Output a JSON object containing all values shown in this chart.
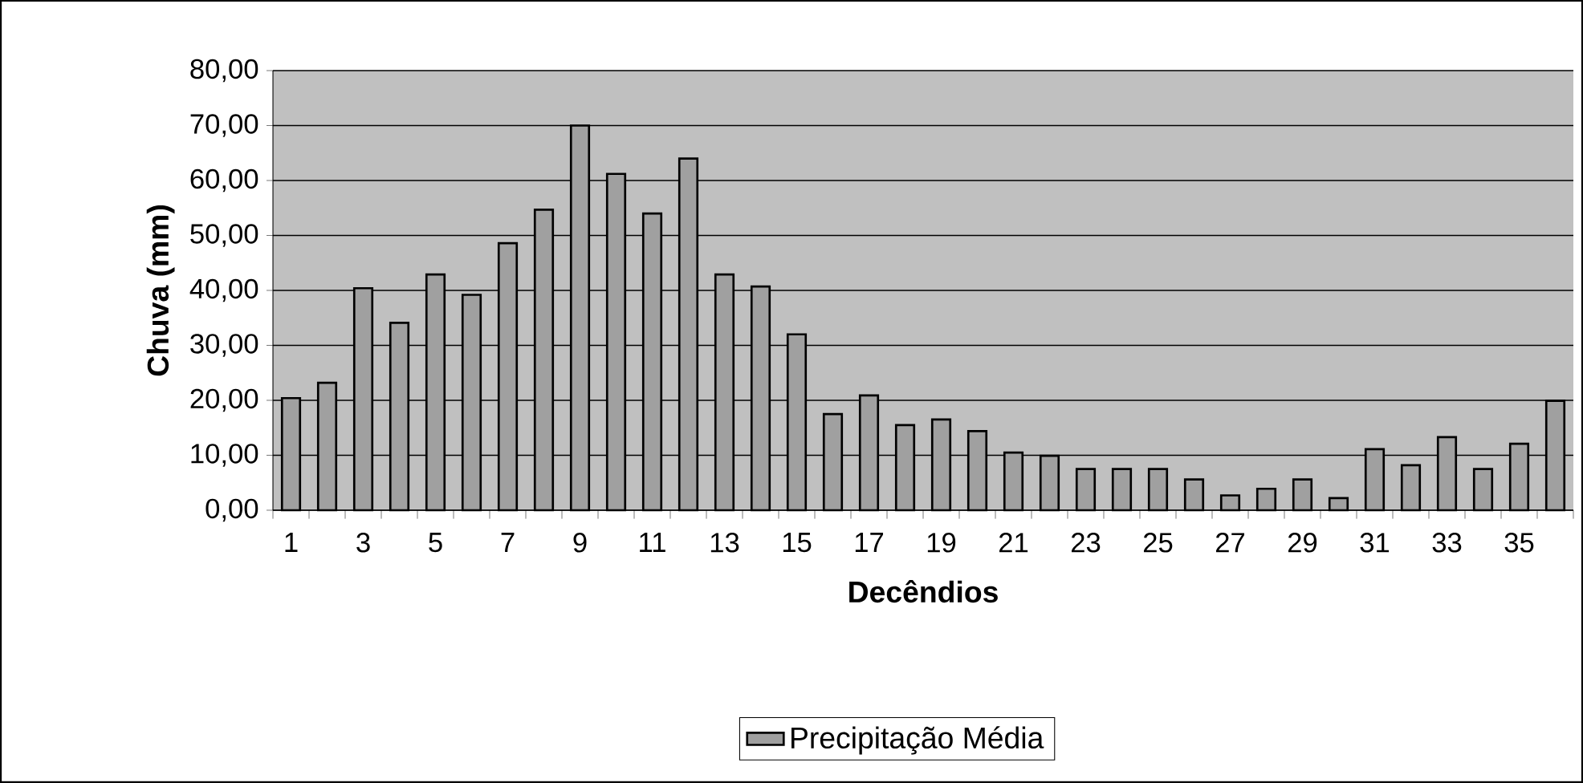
{
  "chart_data": {
    "type": "bar",
    "xlabel": "Decêndios",
    "ylabel": "Chuva (mm)",
    "categories": [
      "1",
      null,
      "3",
      null,
      "5",
      null,
      "7",
      null,
      "9",
      null,
      "11",
      null,
      "13",
      null,
      "15",
      null,
      "17",
      null,
      "19",
      null,
      "21",
      null,
      "23",
      null,
      "25",
      null,
      "27",
      null,
      "29",
      null,
      "31",
      null,
      "33",
      null,
      "35",
      null
    ],
    "series": [
      {
        "name": "Precipitação Média",
        "color": "#a0a0a0",
        "values": [
          20.4,
          23.2,
          40.4,
          34.1,
          42.9,
          39.2,
          48.6,
          54.7,
          70.0,
          61.2,
          54.0,
          64.0,
          42.9,
          40.7,
          32.0,
          17.5,
          20.9,
          15.5,
          16.5,
          14.4,
          10.5,
          9.9,
          7.5,
          7.5,
          7.5,
          5.6,
          2.7,
          3.9,
          5.6,
          2.2,
          11.1,
          8.2,
          13.3,
          7.5,
          12.1,
          19.9
        ]
      }
    ],
    "ylim": [
      0,
      80
    ],
    "yticks": [
      {
        "value": 0,
        "label": "0,00"
      },
      {
        "value": 10,
        "label": "10,00"
      },
      {
        "value": 20,
        "label": "20,00"
      },
      {
        "value": 30,
        "label": "30,00"
      },
      {
        "value": 40,
        "label": "40,00"
      },
      {
        "value": 50,
        "label": "50,00"
      },
      {
        "value": 60,
        "label": "60,00"
      },
      {
        "value": 70,
        "label": "70,00"
      },
      {
        "value": 80,
        "label": "80,00"
      }
    ],
    "grid": "y",
    "legend": "bottom"
  }
}
